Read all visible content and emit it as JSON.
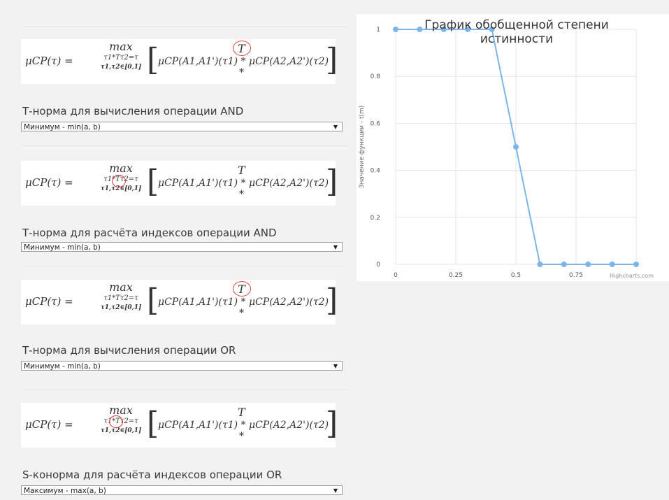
{
  "sections": [
    {
      "label": "Т-норма для вычисления операции AND",
      "select_value": "Минимум - min(a, b)",
      "highlight": "T"
    },
    {
      "label": "Т-норма для расчёта индексов операции AND",
      "select_value": "Минимум - min(a, b)",
      "highlight": "tau"
    },
    {
      "label": "Т-норма для вычисления операции OR",
      "select_value": "Минимум - min(a, b)",
      "highlight": "T"
    },
    {
      "label": "S-конорма для расчёта индексов операции OR",
      "select_value": "Максимум - max(a, b)",
      "highlight": "tau"
    }
  ],
  "formula": {
    "lhs": "μCP(τ) =",
    "max": "max",
    "under1": "τ1*Tτ2=τ",
    "under2": "τ1,τ2∈[0,1]",
    "body": "μCP(A1,A1')(τ1) * μCP(A2,A2')(τ2)",
    "T": "T",
    "star": "*"
  },
  "chart_data": {
    "type": "line",
    "title": "График обобщенной степени истинности",
    "ylabel": "Значение функции - t(m)",
    "xlabel": "",
    "x": [
      0,
      0.1,
      0.2,
      0.3,
      0.4,
      0.5,
      0.6,
      0.7,
      0.8,
      0.9,
      1.0
    ],
    "y": [
      1,
      1,
      1,
      1,
      1,
      0.5,
      0,
      0,
      0,
      0,
      0
    ],
    "xlim": [
      0,
      1
    ],
    "ylim": [
      0,
      1
    ],
    "x_ticks": [
      "0",
      "0.25",
      "0.5",
      "0.75"
    ],
    "y_ticks": [
      "0",
      "0.2",
      "0.4",
      "0.6",
      "0.8",
      "1"
    ],
    "grid": true,
    "legend": false,
    "line_color": "#7cb5ec",
    "credit": "Highcharts.com"
  }
}
